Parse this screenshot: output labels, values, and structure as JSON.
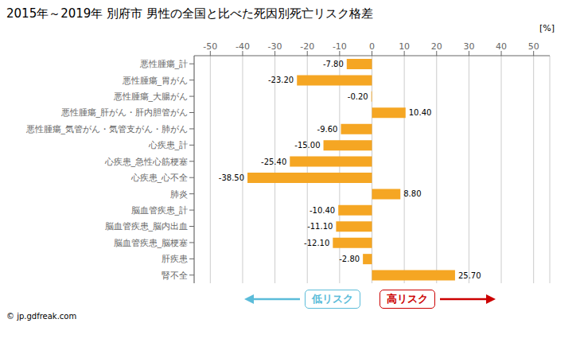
{
  "chart_data": {
    "type": "bar",
    "orientation": "horizontal",
    "title": "2015年～2019年 別府市 男性の全国と比べた死因別死亡リスク格差",
    "categories": [
      "悪性腫瘍_計",
      "悪性腫瘍_胃がん",
      "悪性腫瘍_大腸がん",
      "悪性腫瘍_肝がん・肝内胆管がん",
      "悪性腫瘍_気管がん・気管支がん・肺がん",
      "心疾患_計",
      "心疾患_急性心筋梗塞",
      "心疾患_心不全",
      "肺炎",
      "脳血管疾患_計",
      "脳血管疾患_脳内出血",
      "脳血管疾患_脳梗塞",
      "肝疾患",
      "腎不全"
    ],
    "values": [
      -7.8,
      -23.2,
      -0.2,
      10.4,
      -9.6,
      -15.0,
      -25.4,
      -38.5,
      8.8,
      -10.4,
      -11.1,
      -12.1,
      -2.8,
      25.7
    ],
    "value_labels": [
      "-7.80",
      "-23.20",
      "-0.20",
      "10.40",
      "-9.60",
      "-15.00",
      "-25.40",
      "-38.50",
      "8.80",
      "-10.40",
      "-11.10",
      "-12.10",
      "-2.80",
      "25.70"
    ],
    "color": "#F5A623",
    "xlim": [
      -55,
      55
    ],
    "xticks": [
      -50,
      -40,
      -30,
      -20,
      -10,
      0,
      10,
      20,
      30,
      40,
      50
    ],
    "grid": true,
    "data_labels": true,
    "annotations": [
      {
        "text": "[%]"
      },
      {
        "text": "低リスク",
        "color": "#5BBCD9"
      },
      {
        "text": "高リスク",
        "color": "#CC0000"
      },
      {
        "text": "© jp.gdfreak.com"
      }
    ]
  }
}
